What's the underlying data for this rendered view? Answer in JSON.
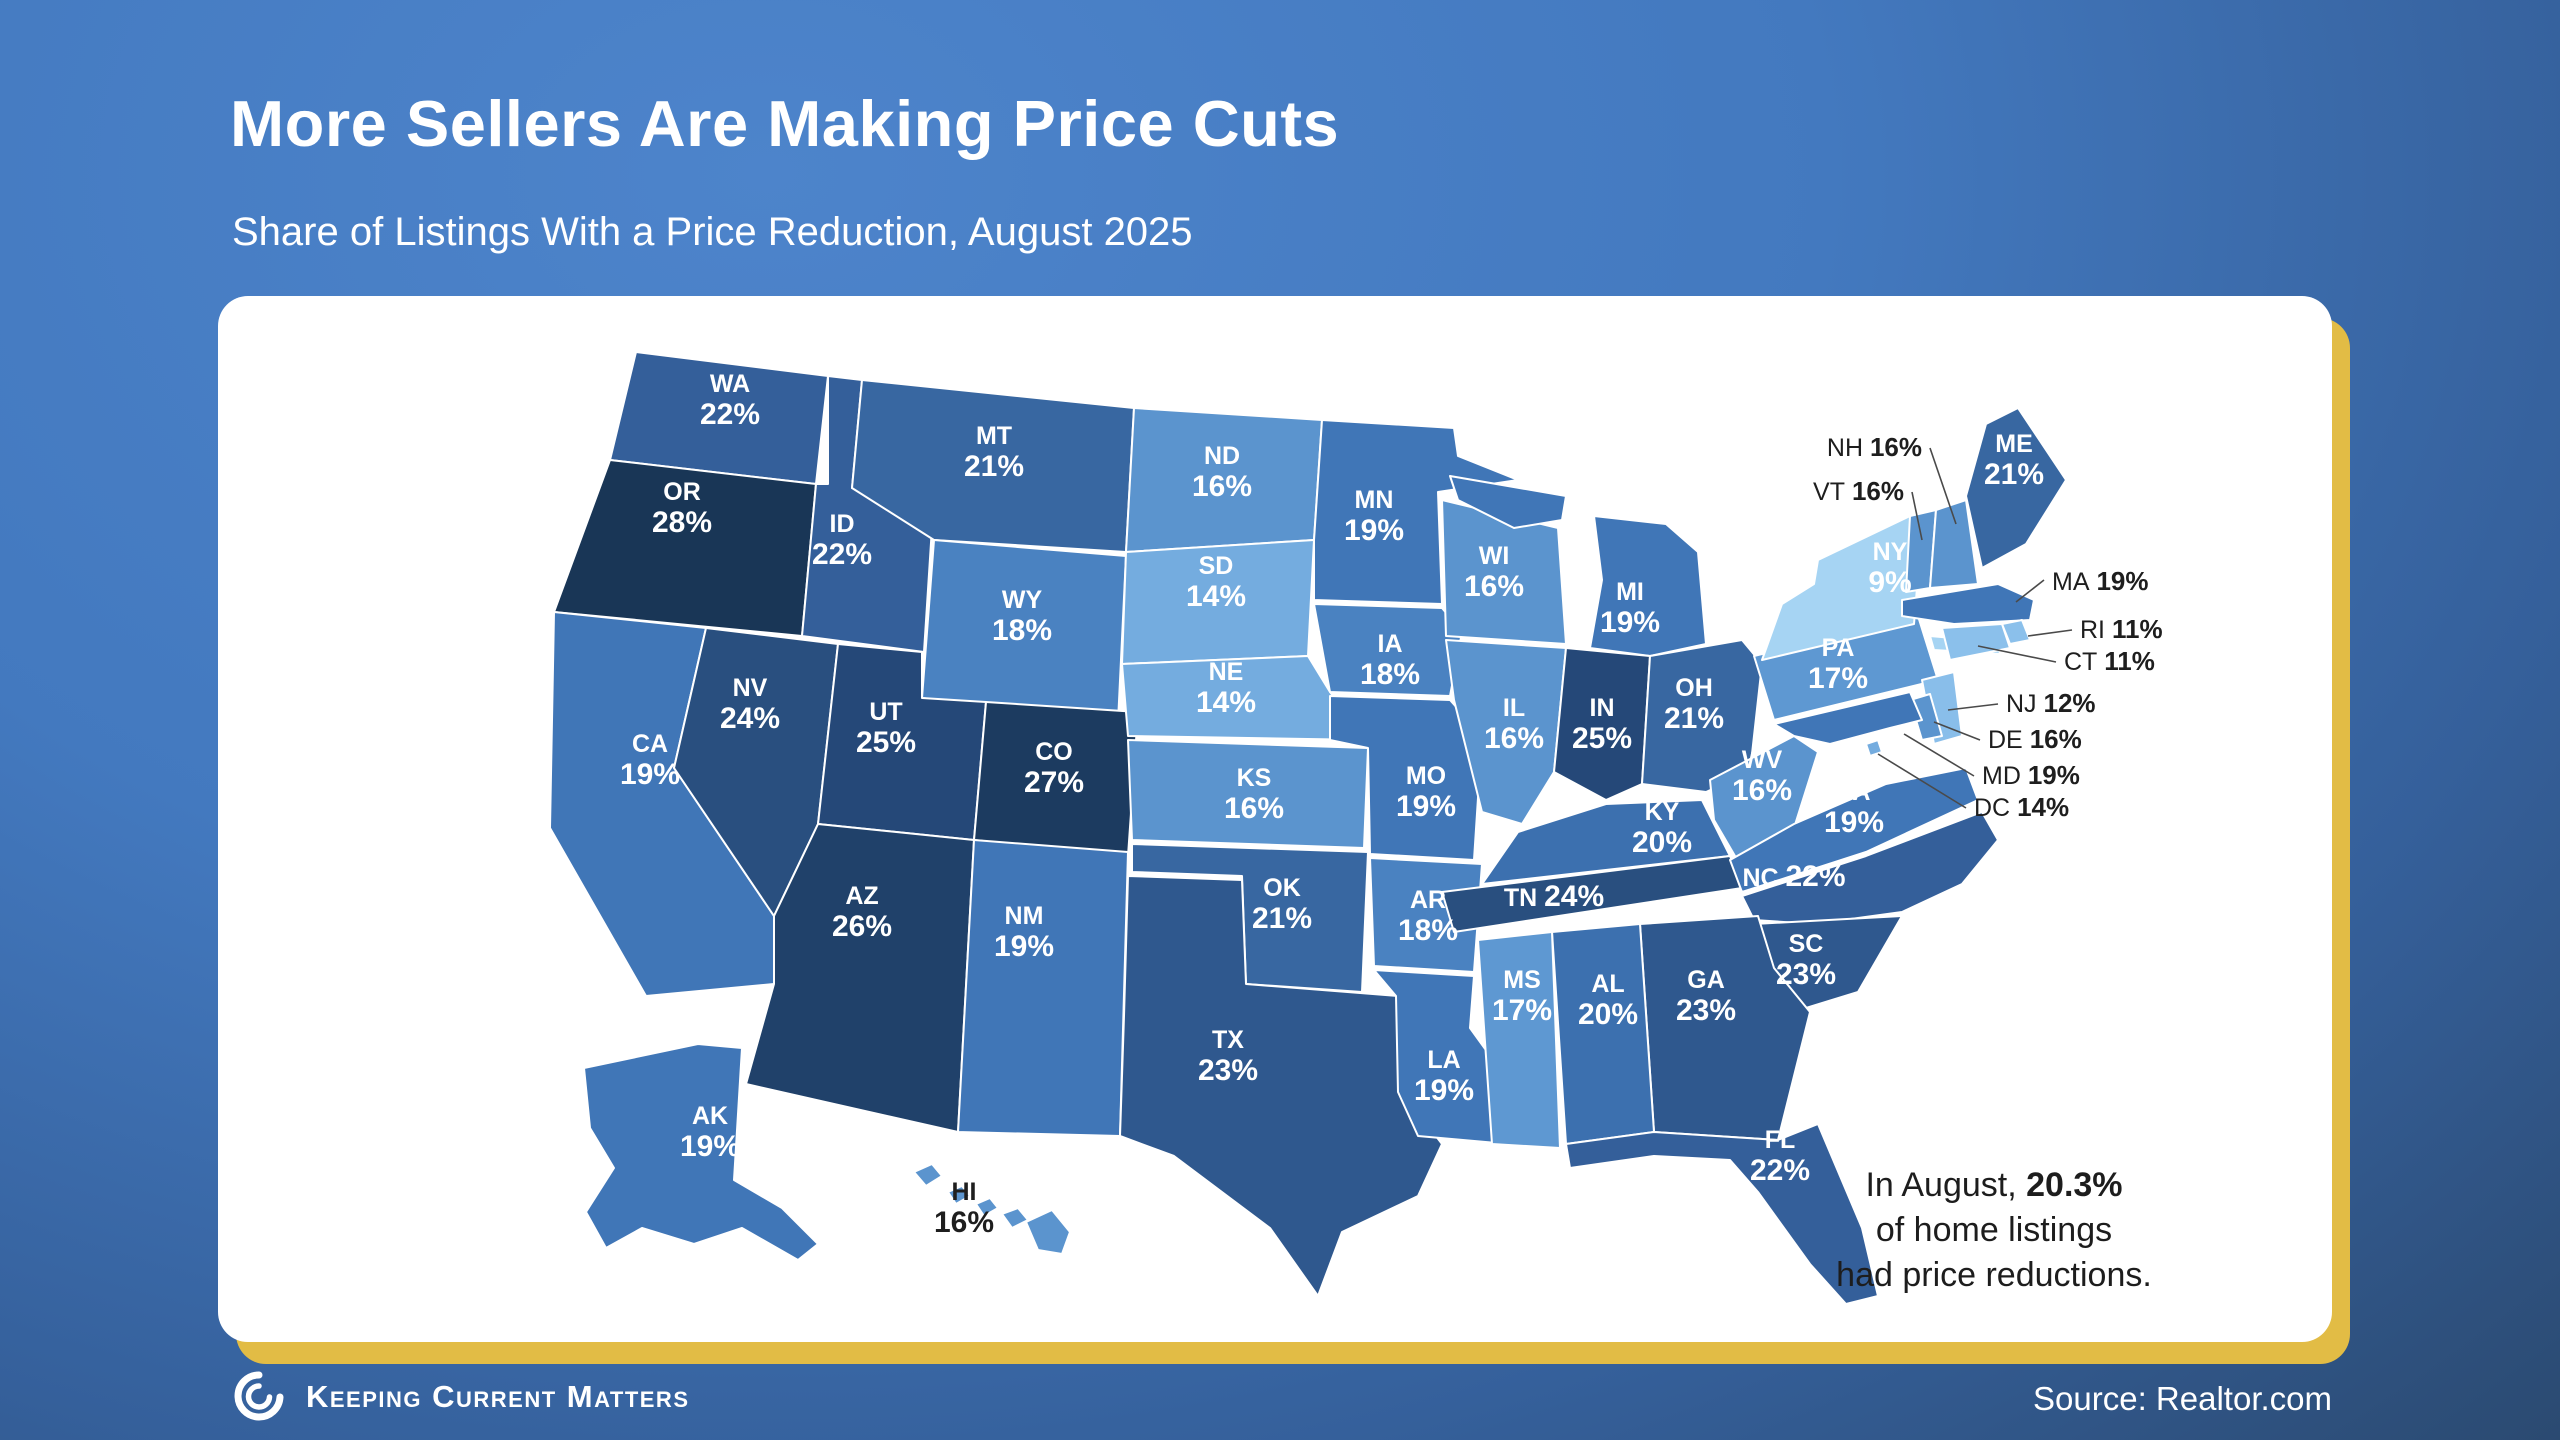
{
  "title": "More Sellers Are Making Price Cuts",
  "subtitle": "Share of Listings With a Price Reduction, August 2025",
  "annotation": {
    "line1_prefix": "In August, ",
    "line1_bold": "20.3%",
    "line2": "of home listings",
    "line3": "had price reductions."
  },
  "source": "Source: Realtor.com",
  "footer": {
    "brand": "Keeping Current Matters"
  },
  "colors": {
    "background_top": "#4d84cb",
    "background_bottom": "#2b4a71",
    "card": "#ffffff",
    "card_shadow_yellow": "#e2bc45",
    "state_border": "#ffffff",
    "label_light": "#ffffff",
    "label_dark": "#1e1e1e",
    "leader_line": "#4a4a4a",
    "scale": {
      "9": "#a6d4f3",
      "11": "#8bc0eb",
      "12": "#89beea",
      "14": "#74acdf",
      "16": "#5b94ce",
      "17": "#5e98d2",
      "18": "#4a82c1",
      "19": "#4076b7",
      "20": "#3c70af",
      "21": "#3867a1",
      "22": "#345f9a",
      "23": "#2f588e",
      "24": "#294f7f",
      "25": "#254878",
      "26": "#20416a",
      "27": "#1c3b60",
      "28": "#193656"
    }
  },
  "chart_data": {
    "type": "choropleth_map",
    "title": "More Sellers Are Making Price Cuts",
    "metric": "Share of listings with a price reduction, August 2025 (%)",
    "region": "United States",
    "national_note": "In August, 20.3% of home listings had price reductions.",
    "states": [
      {
        "abbr": "WA",
        "value": 22
      },
      {
        "abbr": "OR",
        "value": 28
      },
      {
        "abbr": "CA",
        "value": 19
      },
      {
        "abbr": "NV",
        "value": 24
      },
      {
        "abbr": "ID",
        "value": 22
      },
      {
        "abbr": "MT",
        "value": 21
      },
      {
        "abbr": "WY",
        "value": 18
      },
      {
        "abbr": "UT",
        "value": 25
      },
      {
        "abbr": "CO",
        "value": 27
      },
      {
        "abbr": "AZ",
        "value": 26
      },
      {
        "abbr": "NM",
        "value": 19
      },
      {
        "abbr": "ND",
        "value": 16
      },
      {
        "abbr": "SD",
        "value": 14
      },
      {
        "abbr": "NE",
        "value": 14
      },
      {
        "abbr": "KS",
        "value": 16
      },
      {
        "abbr": "OK",
        "value": 21
      },
      {
        "abbr": "TX",
        "value": 23
      },
      {
        "abbr": "MN",
        "value": 19
      },
      {
        "abbr": "IA",
        "value": 18
      },
      {
        "abbr": "MO",
        "value": 19
      },
      {
        "abbr": "AR",
        "value": 18
      },
      {
        "abbr": "LA",
        "value": 19
      },
      {
        "abbr": "WI",
        "value": 16
      },
      {
        "abbr": "IL",
        "value": 16
      },
      {
        "abbr": "MI",
        "value": 19
      },
      {
        "abbr": "IN",
        "value": 25
      },
      {
        "abbr": "OH",
        "value": 21
      },
      {
        "abbr": "KY",
        "value": 20
      },
      {
        "abbr": "TN",
        "value": 24
      },
      {
        "abbr": "WV",
        "value": 16
      },
      {
        "abbr": "VA",
        "value": 19
      },
      {
        "abbr": "NC",
        "value": 22
      },
      {
        "abbr": "SC",
        "value": 23
      },
      {
        "abbr": "GA",
        "value": 23
      },
      {
        "abbr": "AL",
        "value": 20
      },
      {
        "abbr": "MS",
        "value": 17
      },
      {
        "abbr": "FL",
        "value": 22
      },
      {
        "abbr": "PA",
        "value": 17
      },
      {
        "abbr": "NY",
        "value": 9
      },
      {
        "abbr": "NJ",
        "value": 12
      },
      {
        "abbr": "DE",
        "value": 16
      },
      {
        "abbr": "MD",
        "value": 19
      },
      {
        "abbr": "DC",
        "value": 14
      },
      {
        "abbr": "VT",
        "value": 16
      },
      {
        "abbr": "NH",
        "value": 16
      },
      {
        "abbr": "MA",
        "value": 19
      },
      {
        "abbr": "RI",
        "value": 11
      },
      {
        "abbr": "CT",
        "value": 11
      },
      {
        "abbr": "ME",
        "value": 21
      },
      {
        "abbr": "AK",
        "value": 19
      },
      {
        "abbr": "HI",
        "value": 16
      }
    ]
  }
}
